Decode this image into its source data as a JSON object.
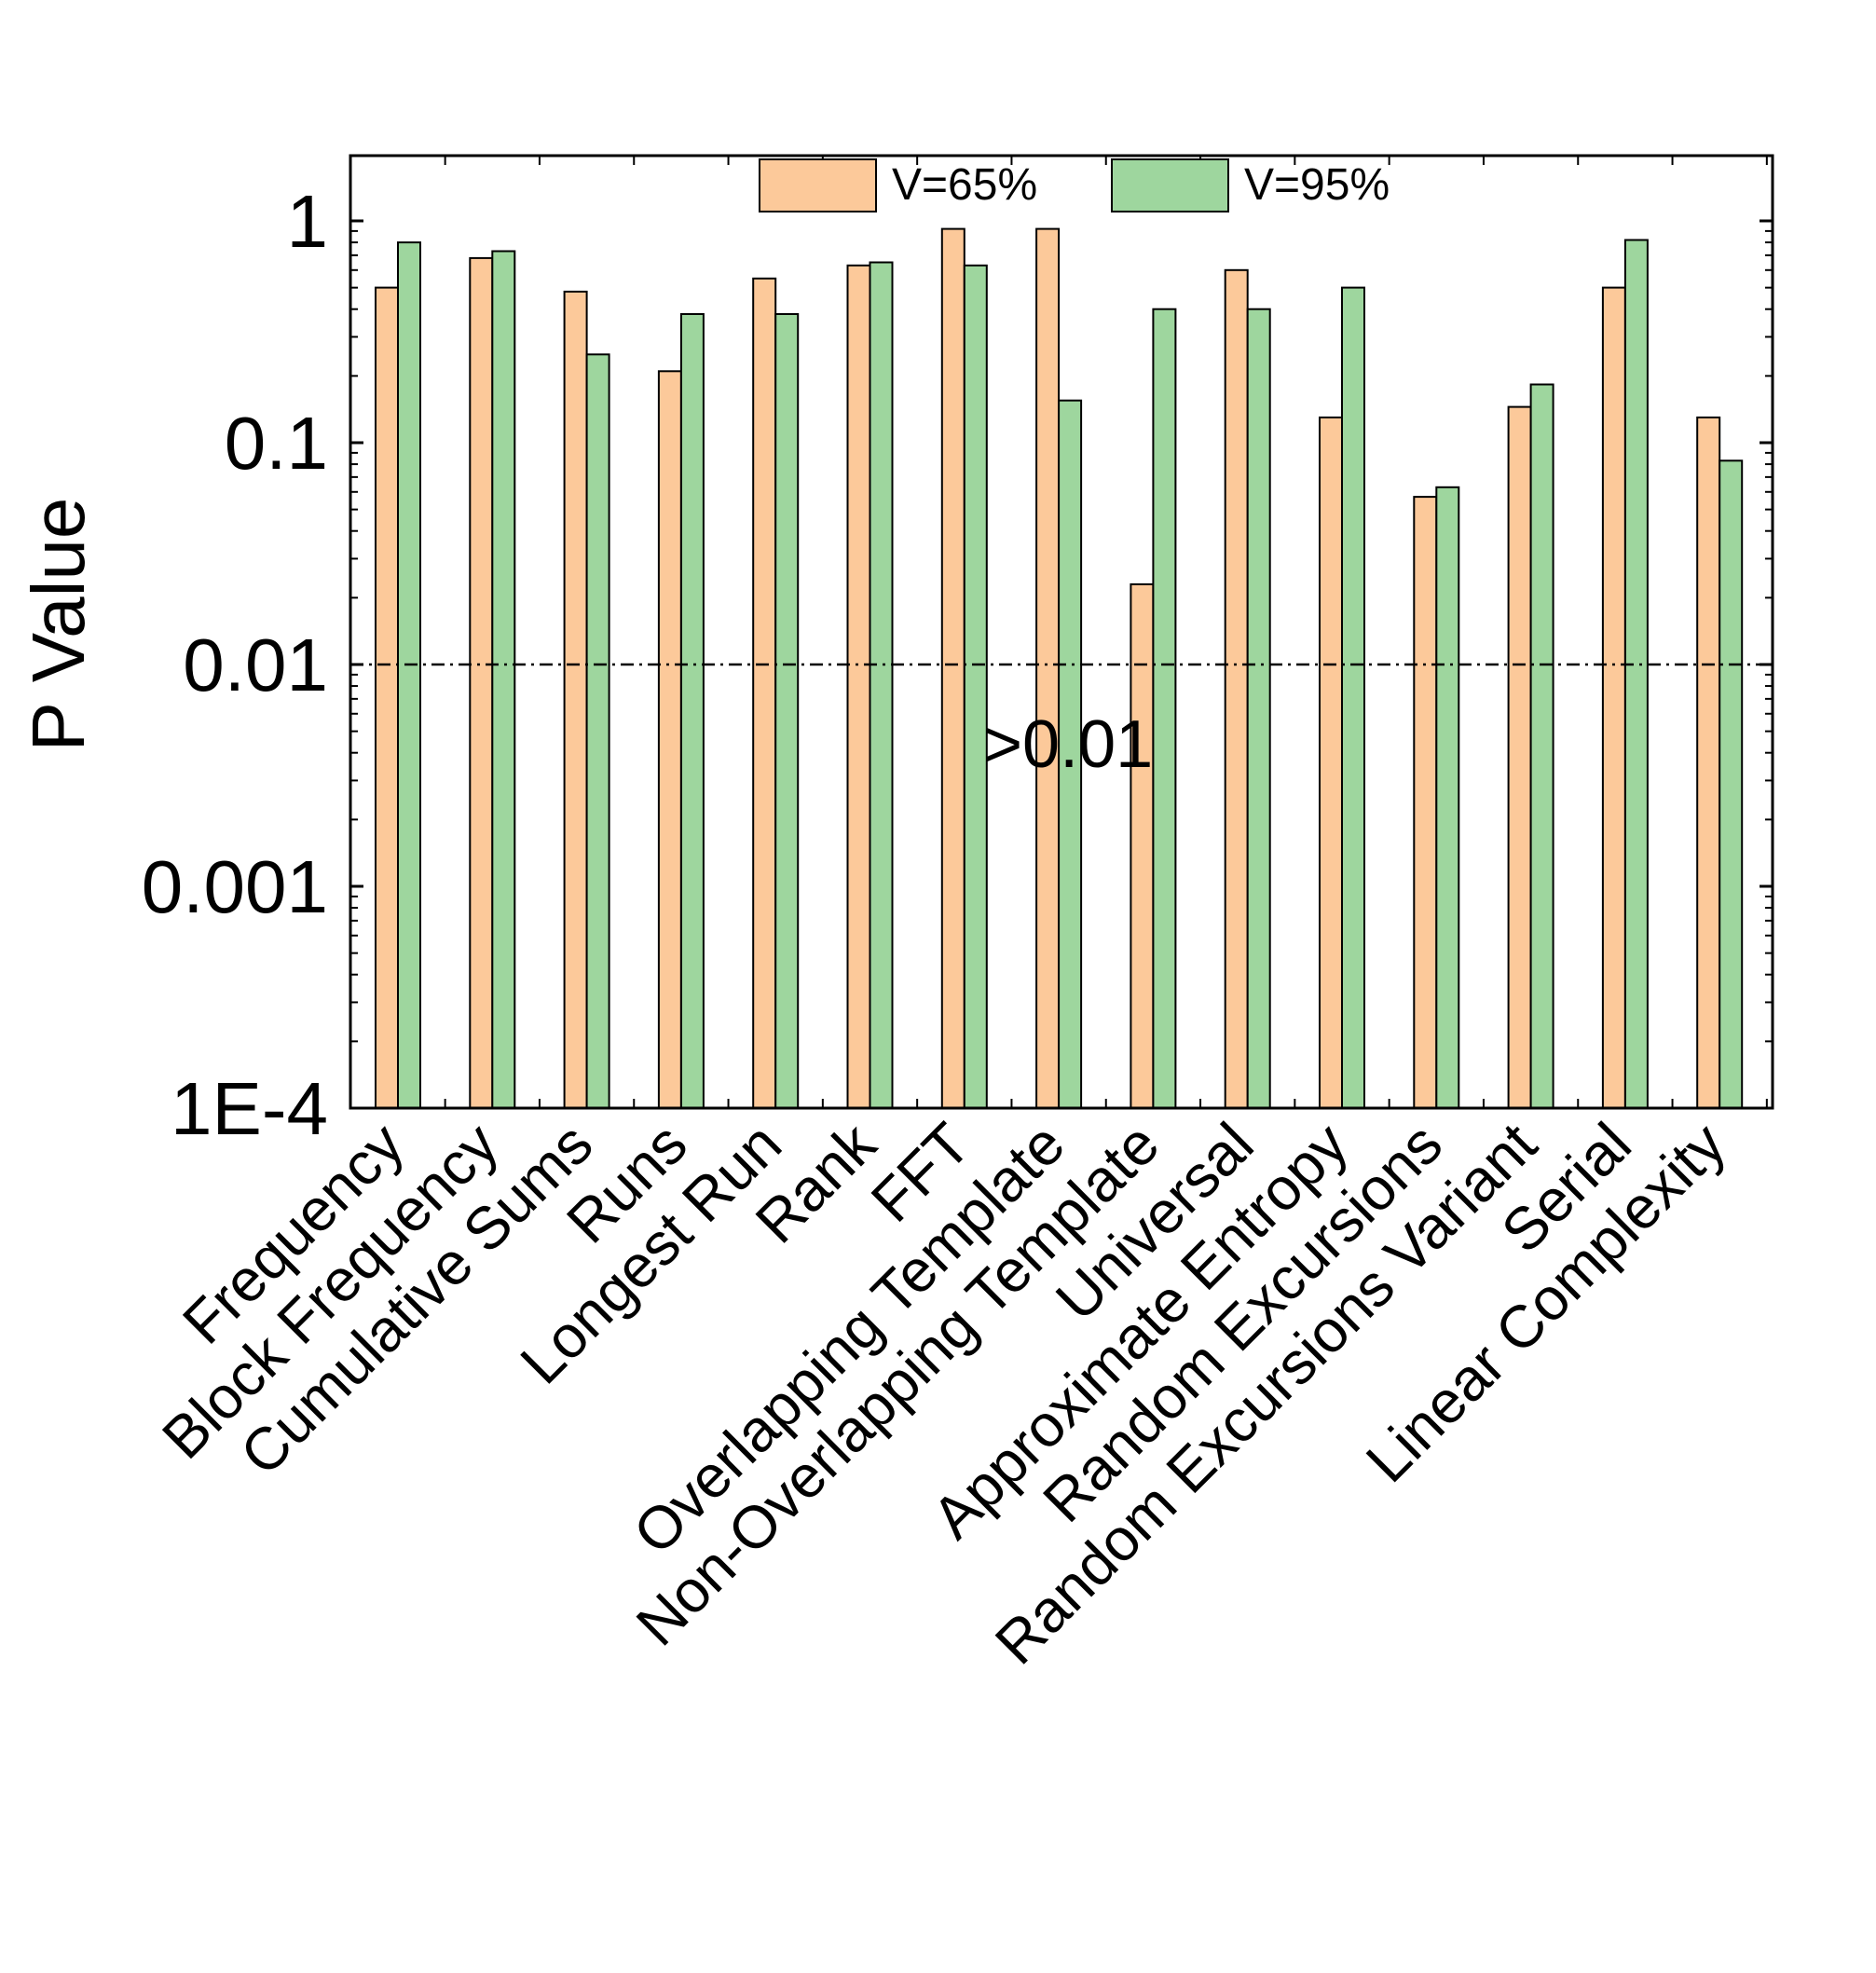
{
  "chart_data": {
    "type": "bar",
    "title": "",
    "xlabel": "",
    "ylabel": "P Value",
    "yscale": "log",
    "ylim": [
      0.0001,
      2
    ],
    "yticks": [
      {
        "value": 1,
        "label": "1"
      },
      {
        "value": 0.1,
        "label": "0.1"
      },
      {
        "value": 0.01,
        "label": "0.01"
      },
      {
        "value": 0.001,
        "label": "0.001"
      },
      {
        "value": 0.0001,
        "label": "1E-4"
      }
    ],
    "categories": [
      "Frequency",
      "Block Frequency",
      "Cumulative Sums",
      "Runs",
      "Longest Run",
      "Rank",
      "FFT",
      "Overlapping Template",
      "Non-Overlapping Template",
      "Universal",
      "Approximate Entropy",
      "Random Excursions",
      "Random Excursions Variant",
      "Serial",
      "Linear Complexity"
    ],
    "series": [
      {
        "name": "V=65%",
        "color": "#FCC99A",
        "values": [
          0.5,
          0.68,
          0.48,
          0.21,
          0.55,
          0.63,
          0.92,
          0.92,
          0.023,
          0.6,
          0.13,
          0.057,
          0.145,
          0.5,
          0.13
        ]
      },
      {
        "name": "V=95%",
        "color": "#9ED69E",
        "values": [
          0.8,
          0.73,
          0.25,
          0.38,
          0.38,
          0.65,
          0.63,
          0.155,
          0.4,
          0.4,
          0.5,
          0.063,
          0.183,
          0.82,
          0.083
        ]
      }
    ],
    "reference_line": {
      "value": 0.01,
      "style": "dash-dot"
    },
    "annotation": ">0.01",
    "legend_position": "top-center",
    "grid": false
  }
}
